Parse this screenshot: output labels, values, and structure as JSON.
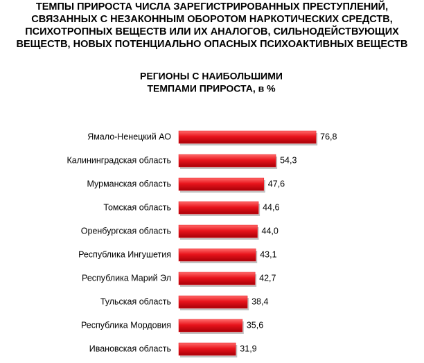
{
  "chart_data": {
    "type": "bar",
    "orientation": "horizontal",
    "title": [
      "ТЕМПЫ ПРИРОСТА ЧИСЛА ЗАРЕГИСТРИРОВАННЫХ ПРЕСТУПЛЕНИЙ,",
      "СВЯЗАННЫХ С НЕЗАКОННЫМ ОБОРОТОМ НАРКОТИЧЕСКИХ СРЕДСТВ,",
      "ПСИХОТРОПНЫХ ВЕЩЕСТВ ИЛИ ИХ АНАЛОГОВ, СИЛЬНОДЕЙСТВУЮЩИХ",
      "ВЕЩЕСТВ, НОВЫХ ПОТЕНЦИАЛЬНО ОПАСНЫХ ПСИХОАКТИВНЫХ ВЕЩЕСТВ"
    ],
    "subtitle": [
      "РЕГИОНЫ С НАИБОЛЬШИМИ",
      "ТЕМПАМИ ПРИРОСТА, в %"
    ],
    "categories": [
      "Ямало-Ненецкий АО",
      "Калининградская область",
      "Мурманская область",
      "Томская область",
      "Оренбургская область",
      "Республика Ингушетия",
      "Республика Марий Эл",
      "Тульская область",
      "Республика Мордовия",
      "Ивановская область"
    ],
    "values": [
      76.8,
      54.3,
      47.6,
      44.6,
      44.0,
      43.1,
      42.7,
      38.4,
      35.6,
      31.9
    ],
    "value_labels": [
      "76,8",
      "54,3",
      "47,6",
      "44,6",
      "44,0",
      "43,1",
      "42,7",
      "38,4",
      "35,6",
      "31,9"
    ],
    "color": "#e8141c"
  }
}
